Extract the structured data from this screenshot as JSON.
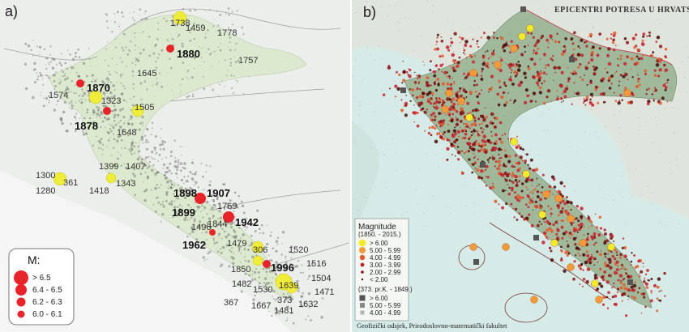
{
  "panel_a": {
    "label": "a)",
    "legend": {
      "title": "M:",
      "items": [
        {
          "label": "> 6.5",
          "radius": 9
        },
        {
          "label": "6.4 - 6.5",
          "radius": 7
        },
        {
          "label": "6.2 - 6.3",
          "radius": 5.5
        },
        {
          "label": "6.0 - 6.1",
          "radius": 4.5
        }
      ],
      "color": "#e8242a"
    },
    "major_years": [
      "1880",
      "1870",
      "1878",
      "1898",
      "1907",
      "1899",
      "1942",
      "1962",
      "1996"
    ],
    "minor_years": [
      "1738",
      "1459",
      "1778",
      "1757",
      "1645",
      "1574",
      "1323",
      "1505",
      "1648",
      "1399",
      "1407",
      "1300",
      "361",
      "1280",
      "1343",
      "1418",
      "1769",
      "1496",
      "1844",
      "1479",
      "306",
      "1520",
      "1516",
      "1850",
      "1504",
      "1482",
      "1530",
      "1639",
      "1471",
      "367",
      "1667",
      "373",
      "1632",
      "1481"
    ],
    "colors": {
      "major": "#e8242a",
      "minor": "#f0ec3a",
      "region": "#dde9cf",
      "sea": "#f4f5f4"
    }
  },
  "panel_b": {
    "label": "b)",
    "title": "EPICENTRI POTRESA U HRVATSKOJ",
    "legend": {
      "title": "Magnitude",
      "subtitle": "(1850. - 2015.)",
      "items": [
        {
          "label": "> 6.00",
          "color": "#f3ea2a"
        },
        {
          "label": "5.00 - 5.99",
          "color": "#f29a3a"
        },
        {
          "label": "4.00 - 4.99",
          "color": "#e25a2a"
        },
        {
          "label": "3.00 - 3.99",
          "color": "#c8202a"
        },
        {
          "label": "2.00 - 2.99",
          "color": "#8a1010"
        },
        {
          "label": "< 2.00",
          "color": "#4a0808"
        }
      ],
      "hist_subtitle": "(373. pr.K. - 1849.)",
      "hist_items": [
        {
          "label": "> 6.00",
          "color": "#555555"
        },
        {
          "label": "5.00 - 5.99",
          "color": "#888888"
        },
        {
          "label": "4.00 - 4.99",
          "color": "#b4b4b4"
        }
      ]
    },
    "credit": "Geofizički odsjek, Prirodoslovno-matematički fakultet",
    "colors": {
      "sea": "#d6ebe8",
      "land": "#9fb99a",
      "outside": "#dfe5dd"
    }
  }
}
